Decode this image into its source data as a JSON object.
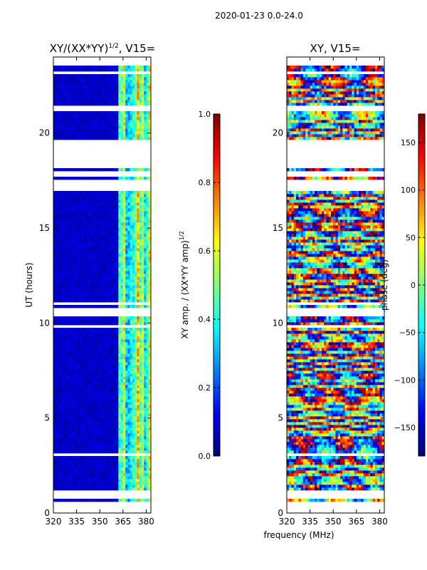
{
  "suptitle": "2020-01-23 0.0-24.0",
  "shared_xlabel": "frequency (MHz)",
  "colormap": "jet",
  "colormap_stops": [
    "#00007f",
    "#0000ff",
    "#007fff",
    "#00ffff",
    "#7fff7f",
    "#ffff00",
    "#ff7f00",
    "#ff0000",
    "#7f0000"
  ],
  "chart_data": [
    {
      "type": "heatmap",
      "name": "amplitude",
      "title_main": "XY/(XX*YY)",
      "title_exp": "1/2",
      "title_tail": ", V15=",
      "ylabel": "UT (hours)",
      "xlim": [
        320,
        383
      ],
      "ylim": [
        0,
        24
      ],
      "xticks": [
        320,
        335,
        350,
        365,
        380
      ],
      "xtick_labels": [
        "320",
        "335",
        "350",
        "365",
        "380"
      ],
      "yticks": [
        0,
        5,
        10,
        15,
        20
      ],
      "ytick_labels": [
        "0",
        "5",
        "10",
        "15",
        "20"
      ],
      "color_range": [
        0.0,
        1.0
      ],
      "blank_time_ranges_hours": [
        [
          0.0,
          0.55
        ],
        [
          0.7,
          1.2
        ],
        [
          1.3,
          1.4
        ],
        [
          3.0,
          3.1
        ],
        [
          9.8,
          9.9
        ],
        [
          10.3,
          10.8
        ],
        [
          11.0,
          11.1
        ],
        [
          17.0,
          17.6
        ],
        [
          17.75,
          18.0
        ],
        [
          18.2,
          19.6
        ],
        [
          21.2,
          21.4
        ],
        [
          23.1,
          23.2
        ],
        [
          23.6,
          24.0
        ]
      ],
      "pattern_description": "mostly low amplitude (~0.05) below 360 MHz; bright vertical striping (~0.3-0.7) between 360 and 383 MHz",
      "colorbar": {
        "label_main": "XY amp. / (XX*YY amp)",
        "label_exp": "1/2",
        "range": [
          0.0,
          1.0
        ],
        "ticks": [
          0.0,
          0.2,
          0.4,
          0.6,
          0.8,
          1.0
        ],
        "tick_labels": [
          "0.0",
          "0.2",
          "0.4",
          "0.6",
          "0.8",
          "1.0"
        ]
      }
    },
    {
      "type": "heatmap",
      "name": "phase",
      "title": "XY, V15=",
      "xlim": [
        320,
        383
      ],
      "ylim": [
        0,
        24
      ],
      "xticks": [
        320,
        335,
        350,
        365,
        380
      ],
      "xtick_labels": [
        "320",
        "335",
        "350",
        "365",
        "380"
      ],
      "yticks": [
        0,
        5,
        10,
        15,
        20
      ],
      "ytick_labels": [
        "0",
        "5",
        "10",
        "15",
        "20"
      ],
      "color_range": [
        -180,
        180
      ],
      "blank_time_ranges_hours": [
        [
          0.0,
          0.55
        ],
        [
          0.7,
          1.2
        ],
        [
          1.3,
          1.4
        ],
        [
          3.0,
          3.1
        ],
        [
          9.8,
          9.9
        ],
        [
          10.3,
          10.8
        ],
        [
          11.0,
          11.1
        ],
        [
          17.0,
          17.6
        ],
        [
          17.75,
          18.0
        ],
        [
          18.2,
          19.6
        ],
        [
          21.2,
          21.4
        ],
        [
          23.1,
          23.2
        ],
        [
          23.6,
          24.0
        ]
      ],
      "pattern_description": "noisy phase across full range (-180 to 180 deg) with horizontal banding",
      "colorbar": {
        "label": "phase (deg)",
        "range": [
          -180,
          180
        ],
        "ticks": [
          -150,
          -100,
          -50,
          0,
          50,
          100,
          150
        ],
        "tick_labels": [
          "−150",
          "−100",
          "−50",
          "0",
          "50",
          "100",
          "150"
        ]
      }
    }
  ]
}
